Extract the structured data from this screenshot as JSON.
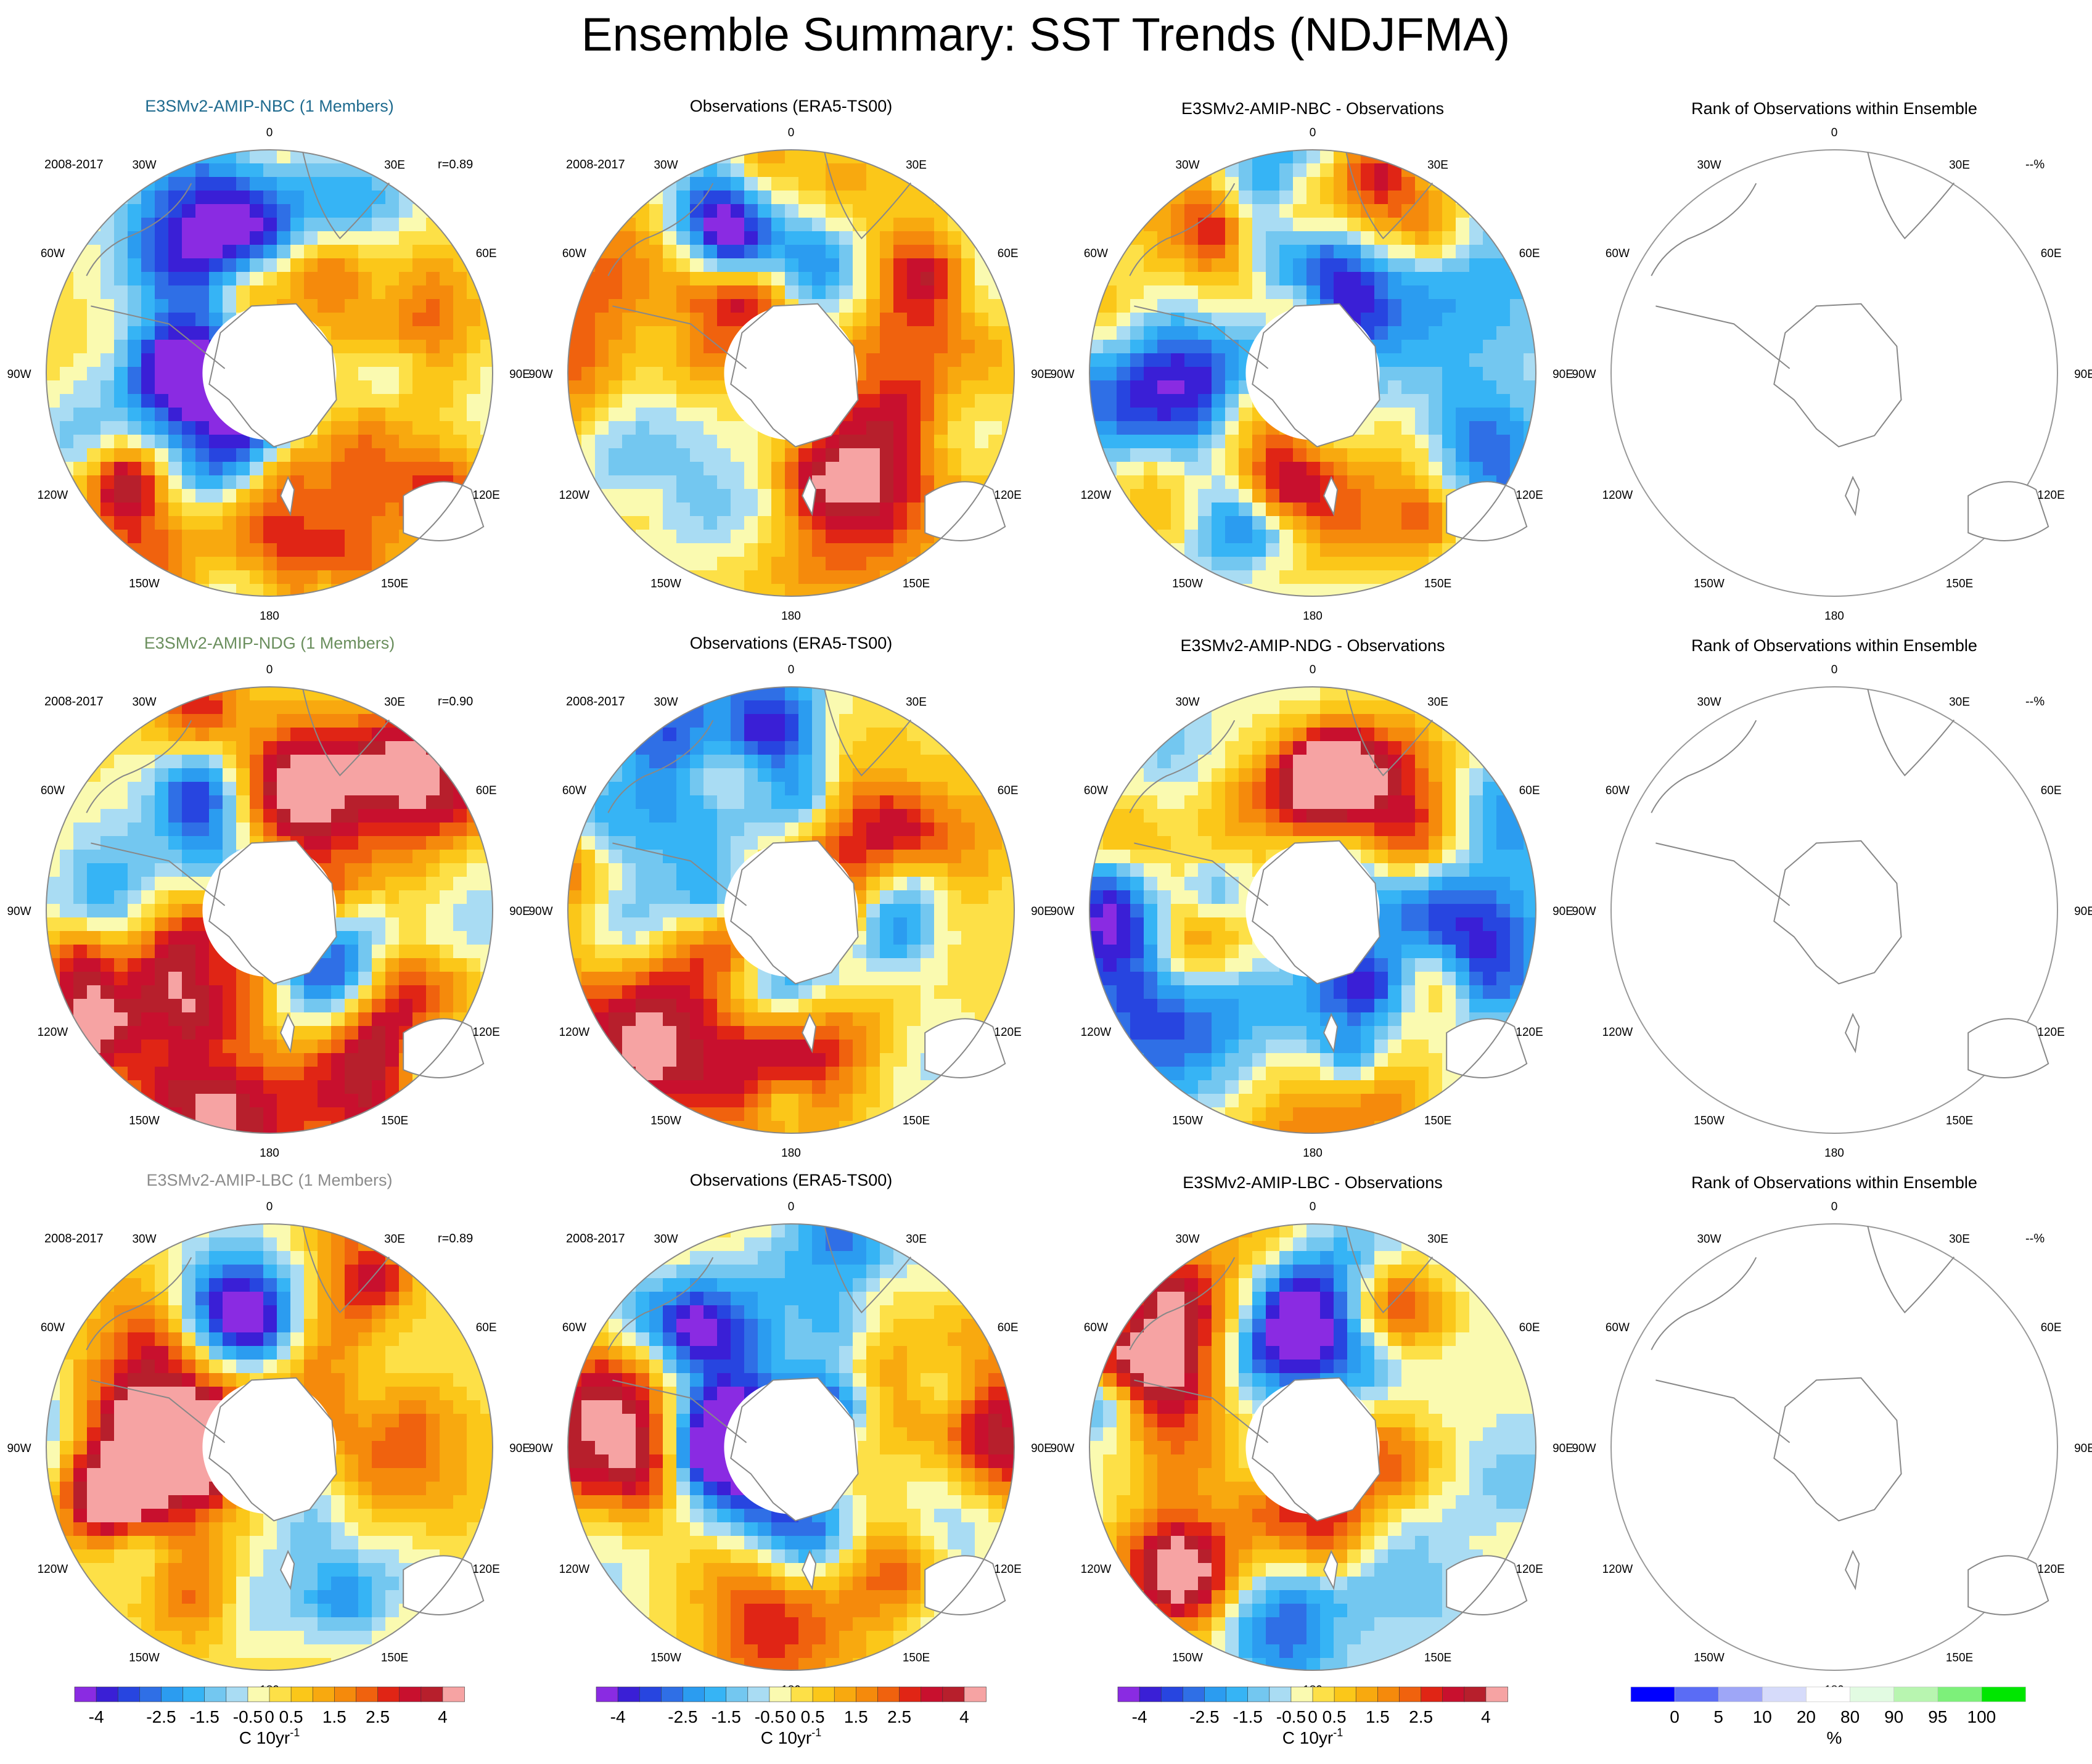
{
  "figure_title": "Ensemble Summary: SST Trends (NDJFMA)",
  "lon_labels": [
    "0",
    "30E",
    "60E",
    "90E",
    "120E",
    "150E",
    "180",
    "150W",
    "120W",
    "90W",
    "60W",
    "30W"
  ],
  "colors": {
    "trend_palette": [
      "#8a2be2",
      "#3a1fd6",
      "#2745e0",
      "#2f6fe6",
      "#2b9cf0",
      "#36b4f5",
      "#73c7f0",
      "#a9dcf3",
      "#fafab0",
      "#fde047",
      "#fbc719",
      "#f8a90f",
      "#f58a0c",
      "#f0620e",
      "#e02515",
      "#c8102e",
      "#b71f2c",
      "#f6a3a3"
    ],
    "rank_palette": [
      "#0000ff",
      "#5a6cf5",
      "#9ea6f7",
      "#d6dbfa",
      "#ffffff",
      "#e2fbe2",
      "#b8f5b0",
      "#7df07a",
      "#00e600"
    ],
    "title_nbc": "#1f6b8f",
    "title_ndg": "#6b8f5e",
    "title_lbc": "#8c8c8c"
  },
  "rows": [
    {
      "model": {
        "title": "E3SMv2-AMIP-NBC (1 Members)",
        "period": "2008-2017",
        "corr": "r=0.89"
      },
      "obs": {
        "title": "Observations (ERA5-TS00)",
        "period": "2008-2017"
      },
      "diff": {
        "title": "E3SMv2-AMIP-NBC - Observations"
      },
      "rank": {
        "title": "Rank of Observations within Ensemble",
        "pct": "--%"
      }
    },
    {
      "model": {
        "title": "E3SMv2-AMIP-NDG (1 Members)",
        "period": "2008-2017",
        "corr": "r=0.90"
      },
      "obs": {
        "title": "Observations (ERA5-TS00)",
        "period": "2008-2017"
      },
      "diff": {
        "title": "E3SMv2-AMIP-NDG - Observations"
      },
      "rank": {
        "title": "Rank of Observations within Ensemble",
        "pct": "--%"
      }
    },
    {
      "model": {
        "title": "E3SMv2-AMIP-LBC (1 Members)",
        "period": "2008-2017",
        "corr": "r=0.89"
      },
      "obs": {
        "title": "Observations (ERA5-TS00)",
        "period": "2008-2017"
      },
      "diff": {
        "title": "E3SMv2-AMIP-LBC - Observations"
      },
      "rank": {
        "title": "Rank of Observations within Ensemble",
        "pct": "--%"
      }
    }
  ],
  "chart_data": [
    {
      "type": "heatmap",
      "projection": "south-polar-stereographic",
      "panels": [
        "model",
        "observations",
        "model-minus-observations"
      ],
      "colorbar": {
        "levels": [
          "-4",
          "-3.5",
          "-3",
          "-2.5",
          "-2",
          "-1.5",
          "-1",
          "-0.5",
          "0",
          "0.5",
          "1",
          "1.5",
          "2",
          "2.5",
          "3",
          "3.5",
          "4"
        ],
        "tick_labels": [
          "-4",
          "-2.5",
          "-1.5",
          "-0.5",
          "0",
          "0.5",
          "1.5",
          "2.5",
          "4"
        ],
        "tick_levels": [
          "-4",
          "-2.5",
          "-1.5",
          "-0.5",
          "0",
          "0.5",
          "1.5",
          "2.5",
          "4"
        ],
        "units_main": "C 10yr",
        "units_sup": "-1"
      }
    },
    {
      "type": "heatmap",
      "projection": "south-polar-stereographic",
      "panels": [
        "rank"
      ],
      "colorbar": {
        "levels": [
          "0",
          "5",
          "10",
          "20",
          "80",
          "90",
          "95",
          "100"
        ],
        "tick_labels": [
          "0",
          "5",
          "10",
          "20",
          "80",
          "90",
          "95",
          "100"
        ],
        "tick_levels": [
          "0",
          "5",
          "10",
          "20",
          "80",
          "90",
          "95",
          "100"
        ],
        "units": "%"
      }
    }
  ]
}
